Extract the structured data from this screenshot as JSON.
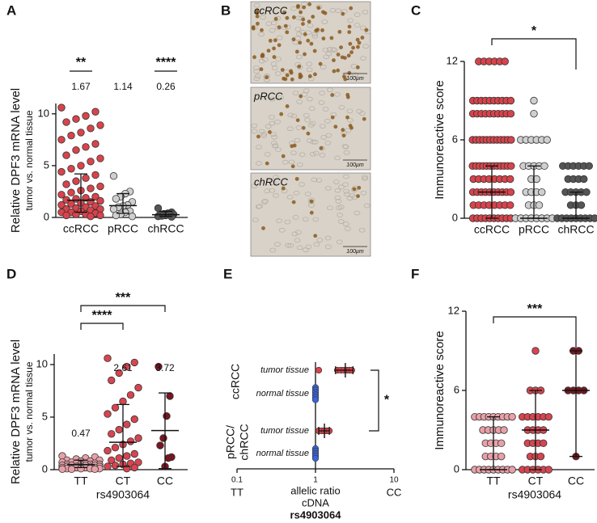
{
  "chart_data": [
    {
      "type": "dotplot",
      "label": "A",
      "ylabel": "Relative DPF3 mRNA level",
      "ylabel2": "tumor vs. normal tissue",
      "categories": [
        "ccRCC",
        "pRCC",
        "chRCC"
      ],
      "colors": [
        "#d9434b",
        "#cfcfcf",
        "#555555"
      ],
      "ylim": [
        0,
        11
      ],
      "yticks": [
        0,
        5,
        10
      ],
      "values": [
        [
          10.6,
          10.2,
          9.8,
          9.5,
          9.2,
          8.9,
          8.6,
          8.2,
          7.9,
          7.5,
          7.1,
          6.8,
          6.5,
          6.0,
          5.7,
          5.4,
          5.0,
          4.7,
          4.4,
          4.1,
          3.8,
          3.5,
          3.2,
          3.0,
          2.8,
          2.6,
          2.4,
          2.2,
          2.0,
          1.9,
          1.8,
          1.7,
          1.6,
          1.5,
          1.4,
          1.3,
          1.2,
          1.1,
          1.0,
          0.9,
          0.8,
          0.8,
          0.7,
          0.6,
          0.5,
          0.5,
          0.4,
          0.3,
          0.3,
          0.2,
          0.2,
          0.1
        ],
        [
          4.0,
          2.5,
          2.3,
          2.0,
          1.8,
          1.5,
          1.2,
          1.1,
          1.0,
          0.8,
          0.6,
          0.5,
          0.3,
          0.2,
          0.1
        ],
        [
          0.9,
          0.5,
          0.4,
          0.35,
          0.3,
          0.3,
          0.25,
          0.2,
          0.15,
          0.1,
          0.05
        ]
      ],
      "centers": [
        1.67,
        1.14,
        0.26
      ],
      "print_centers": true,
      "errors": [
        [
          0.5,
          4.2
        ],
        [
          0.4,
          2.3
        ],
        [
          0.1,
          0.6
        ]
      ],
      "significance": [
        "**",
        null,
        "****"
      ]
    },
    {
      "type": "image",
      "label": "B",
      "images": [
        {
          "caption": "ccRCC",
          "scale_bar": "100µm",
          "density": 90
        },
        {
          "caption": "pRCC",
          "scale_bar": "100µm",
          "density": 25
        },
        {
          "caption": "chRCC",
          "scale_bar": "100µm",
          "density": 10
        }
      ]
    },
    {
      "type": "dotplot",
      "label": "C",
      "ylabel": "Immunoreactive score",
      "categories": [
        "ccRCC",
        "pRCC",
        "chRCC"
      ],
      "colors": [
        "#d9434b",
        "#cfcfcf",
        "#555555"
      ],
      "ylim": [
        0,
        12
      ],
      "yticks": [
        0,
        6,
        12
      ],
      "discrete": true,
      "values": [
        [
          12,
          12,
          12,
          12,
          12,
          12,
          9,
          9,
          9,
          9,
          9,
          9,
          9,
          9,
          9,
          9,
          8,
          8,
          8,
          8,
          8,
          8,
          8,
          8,
          8,
          8,
          6,
          6,
          6,
          6,
          6,
          6,
          6,
          6,
          6,
          6,
          6,
          6,
          4,
          4,
          4,
          4,
          4,
          4,
          4,
          4,
          4,
          4,
          4,
          4,
          3,
          3,
          3,
          3,
          3,
          3,
          3,
          3,
          2,
          2,
          2,
          2,
          2,
          2,
          2,
          2,
          2,
          2,
          1,
          1,
          1,
          1,
          1,
          1,
          1,
          1,
          0,
          0,
          0,
          0,
          0,
          0,
          0,
          0,
          0,
          0
        ],
        [
          9,
          8,
          6,
          6,
          6,
          6,
          6,
          6,
          4,
          4,
          4,
          4,
          4,
          3,
          3,
          2,
          2,
          2,
          2,
          1,
          1,
          1,
          0,
          0,
          0,
          0,
          0,
          0,
          0,
          0
        ],
        [
          4,
          4,
          4,
          4,
          4,
          4,
          3,
          3,
          3,
          3,
          2,
          2,
          2,
          2,
          2,
          1,
          1,
          1,
          0,
          0,
          0,
          0,
          0,
          0,
          0,
          0,
          0
        ]
      ],
      "centers": [
        2,
        0,
        0
      ],
      "print_centers": false,
      "errors": [
        [
          0,
          4
        ],
        [
          0,
          4
        ],
        [
          0,
          2
        ]
      ],
      "brackets": [
        {
          "between": [
            "ccRCC",
            "chRCC"
          ],
          "label": "*"
        }
      ]
    },
    {
      "type": "dotplot",
      "label": "D",
      "ylabel": "Relative DPF3 mRNA level",
      "ylabel2": "tumor vs. normal tissue",
      "xlabel": "rs4903064",
      "categories": [
        "TT",
        "CT",
        "CC"
      ],
      "colors": [
        "#e8a0a8",
        "#d64550",
        "#7a1520"
      ],
      "ylim": [
        0,
        11
      ],
      "yticks": [
        0,
        5,
        10
      ],
      "values": [
        [
          1.3,
          1.2,
          1.1,
          1.0,
          0.9,
          0.9,
          0.8,
          0.8,
          0.7,
          0.7,
          0.6,
          0.6,
          0.6,
          0.5,
          0.5,
          0.5,
          0.5,
          0.4,
          0.4,
          0.4,
          0.4,
          0.3,
          0.3,
          0.3,
          0.3,
          0.3,
          0.2,
          0.2,
          0.2,
          0.2,
          0.2,
          0.1,
          0.1,
          0.1,
          0.1,
          0.05,
          0.05,
          0.05
        ],
        [
          10.6,
          10.2,
          9.8,
          9.2,
          8.5,
          7.8,
          7.1,
          6.5,
          5.9,
          5.3,
          4.8,
          4.3,
          3.8,
          3.4,
          3.0,
          2.7,
          2.4,
          2.1,
          1.8,
          1.5,
          1.3,
          1.1,
          0.9,
          0.7,
          0.6,
          0.5,
          0.4,
          0.3,
          0.2,
          0.1
        ],
        [
          9.8,
          7.0,
          5.1,
          3.0,
          2.3,
          1.2,
          1.1,
          0.3
        ]
      ],
      "centers": [
        0.47,
        2.61,
        3.72
      ],
      "print_centers": true,
      "errors": [
        [
          0.2,
          0.9
        ],
        [
          0.3,
          6.2
        ],
        [
          0.1,
          7.3
        ]
      ],
      "brackets": [
        {
          "between": [
            "TT",
            "CT"
          ],
          "label": "****"
        },
        {
          "between": [
            "TT",
            "CC"
          ],
          "label": "***"
        }
      ]
    },
    {
      "type": "dotlog",
      "label": "E",
      "xlim": [
        0.1,
        10
      ],
      "xticks": [
        0.1,
        1,
        10
      ],
      "end_labels": [
        "TT",
        "CC"
      ],
      "xlabel_lines": [
        "allelic ratio",
        "cDNA",
        "rs4903064"
      ],
      "log_x": true,
      "groups": [
        {
          "name_lines": [
            "ccRCC"
          ],
          "rows": [
            {
              "name": "tumor tissue",
              "color": "#d9434b",
              "values": [
                1.1,
                1.9,
                2.1,
                2.3,
                2.5,
                2.7,
                2.9
              ],
              "center": 2.4,
              "range": [
                1.8,
                3.0
              ]
            },
            {
              "name": "normal tissue",
              "color": "#3b63d9",
              "values": [
                1,
                1,
                1,
                1,
                1,
                1
              ]
            }
          ]
        },
        {
          "name_lines": [
            "pRCC/",
            "chRCC"
          ],
          "rows": [
            {
              "name": "tumor tissue",
              "color": "#d9434b",
              "values": [
                1.1,
                1.2,
                1.3,
                1.4,
                1.5
              ],
              "center": 1.3,
              "range": [
                1.1,
                1.5
              ]
            },
            {
              "name": "normal tissue",
              "color": "#3b63d9",
              "values": [
                1,
                1,
                1,
                1,
                1
              ]
            }
          ]
        }
      ],
      "significance": "*"
    },
    {
      "type": "dotplot",
      "label": "F",
      "ylabel": "Immunoreactive score",
      "xlabel": "rs4903064",
      "categories": [
        "TT",
        "CT",
        "CC"
      ],
      "colors": [
        "#e8a0a8",
        "#d64550",
        "#7a1520"
      ],
      "ylim": [
        0,
        12
      ],
      "yticks": [
        0,
        6,
        12
      ],
      "discrete": true,
      "values": [
        [
          4,
          4,
          4,
          4,
          4,
          4,
          4,
          4,
          4,
          3,
          3,
          3,
          3,
          3,
          2,
          2,
          2,
          2,
          1,
          1,
          1,
          1,
          0,
          0,
          0,
          0,
          0,
          0,
          0,
          0,
          0
        ],
        [
          9,
          6,
          6,
          6,
          4,
          4,
          4,
          4,
          4,
          4,
          3,
          3,
          3,
          3,
          2,
          2,
          2,
          2,
          1,
          1,
          1,
          0,
          0,
          0,
          0,
          0,
          0
        ],
        [
          9,
          9,
          6,
          6,
          6,
          6,
          1
        ]
      ],
      "centers": [
        0,
        3,
        6
      ],
      "print_centers": false,
      "errors": [
        [
          0,
          4
        ],
        [
          0,
          6
        ],
        [
          1,
          9
        ]
      ],
      "brackets": [
        {
          "between": [
            "TT",
            "CC"
          ],
          "label": "***"
        }
      ]
    }
  ]
}
